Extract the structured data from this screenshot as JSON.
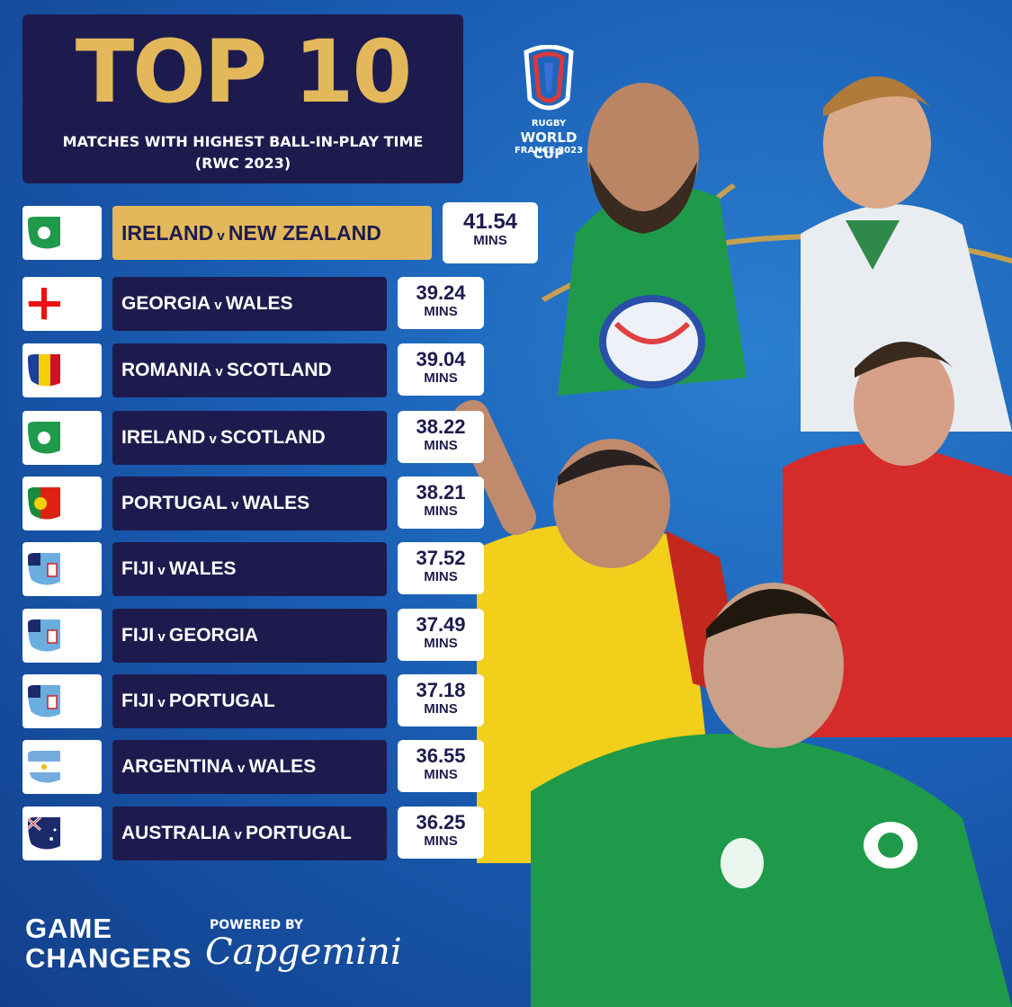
{
  "title": {
    "main": "TOP 10",
    "line1": "MATCHES WITH HIGHEST BALL-IN-PLAY TIME",
    "line2": "(RWC 2023)"
  },
  "logo": {
    "line1": "RUGBY",
    "line2": "WORLD CUP",
    "line3": "FRANCE 2023"
  },
  "rows": [
    {
      "home": "IRELAND",
      "away": "NEW ZEALAND",
      "value": "41.54",
      "unit": "MINS",
      "highlight": true,
      "flags": [
        "ireland-rugby",
        "new-zealand"
      ]
    },
    {
      "home": "GEORGIA",
      "away": "WALES",
      "value": "39.24",
      "unit": "MINS",
      "flags": [
        "georgia",
        "wales"
      ]
    },
    {
      "home": "ROMANIA",
      "away": "SCOTLAND",
      "value": "39.04",
      "unit": "MINS",
      "flags": [
        "romania",
        "scotland"
      ]
    },
    {
      "home": "IRELAND",
      "away": "SCOTLAND",
      "value": "38.22",
      "unit": "MINS",
      "flags": [
        "ireland-rugby",
        "scotland"
      ]
    },
    {
      "home": "PORTUGAL",
      "away": "WALES",
      "value": "38.21",
      "unit": "MINS",
      "flags": [
        "portugal",
        "wales"
      ]
    },
    {
      "home": "FIJI",
      "away": "WALES",
      "value": "37.52",
      "unit": "MINS",
      "flags": [
        "fiji",
        "wales"
      ]
    },
    {
      "home": "FIJI",
      "away": "GEORGIA",
      "value": "37.49",
      "unit": "MINS",
      "flags": [
        "fiji",
        "georgia"
      ]
    },
    {
      "home": "FIJI",
      "away": "PORTUGAL",
      "value": "37.18",
      "unit": "MINS",
      "flags": [
        "fiji",
        "portugal"
      ]
    },
    {
      "home": "ARGENTINA",
      "away": "WALES",
      "value": "36.55",
      "unit": "MINS",
      "flags": [
        "argentina",
        "wales"
      ]
    },
    {
      "home": "AUSTRALIA",
      "away": "PORTUGAL",
      "value": "36.25",
      "unit": "MINS",
      "flags": [
        "australia",
        "portugal"
      ]
    }
  ],
  "versus": "v",
  "footer": {
    "game": "GAME",
    "changers": "CHANGERS",
    "powered_by": "POWERED BY",
    "sponsor": "Capgemini"
  },
  "colors": {
    "navy": "#1d1b4e",
    "gold": "#e3b85a",
    "blue": "#1a5fb5",
    "ireland_green": "#1f9a4a",
    "wales_red": "#c8102e"
  }
}
